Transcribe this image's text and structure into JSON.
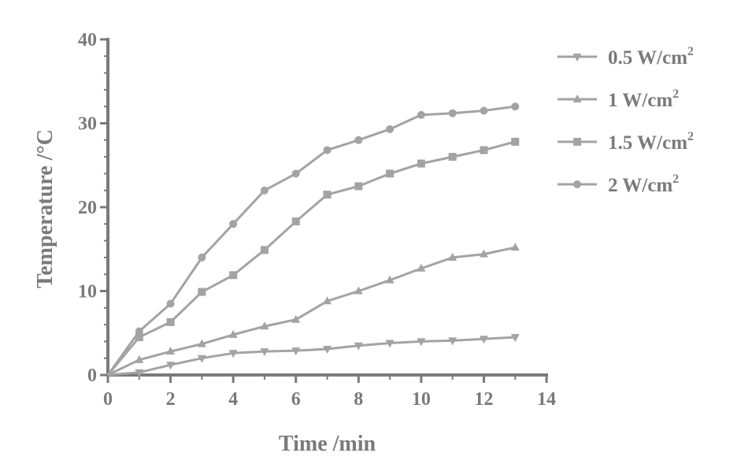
{
  "chart_data": {
    "type": "line",
    "xlabel": "Time /min",
    "ylabel": "Temperature /°C",
    "xlim": [
      0,
      14
    ],
    "ylim": [
      0,
      40
    ],
    "xticks": [
      0,
      2,
      4,
      6,
      8,
      10,
      12,
      14
    ],
    "yticks": [
      0,
      10,
      20,
      30,
      40
    ],
    "grid": false,
    "legend_position": "right",
    "x": [
      0,
      1,
      2,
      3,
      4,
      5,
      6,
      7,
      8,
      9,
      10,
      11,
      12,
      13
    ],
    "series": [
      {
        "name_main": "0.5 W/cm",
        "name_sup": "2",
        "name": "0.5 W/cm2",
        "marker": "triangle-down",
        "values": [
          0,
          0.3,
          1.2,
          2.0,
          2.6,
          2.8,
          2.9,
          3.1,
          3.5,
          3.8,
          4.0,
          4.1,
          4.3,
          4.5
        ]
      },
      {
        "name_main": "1 W/cm",
        "name_sup": "2",
        "name": "1 W/cm2",
        "marker": "triangle-up",
        "values": [
          0,
          1.8,
          2.8,
          3.7,
          4.8,
          5.8,
          6.6,
          8.8,
          10.0,
          11.3,
          12.7,
          14.0,
          14.4,
          15.2
        ]
      },
      {
        "name_main": "1.5 W/cm",
        "name_sup": "2",
        "name": "1.5 W/cm2",
        "marker": "square",
        "values": [
          0,
          4.5,
          6.3,
          9.9,
          11.9,
          14.9,
          18.3,
          21.5,
          22.5,
          24.0,
          25.2,
          26.0,
          26.8,
          27.8
        ]
      },
      {
        "name_main": "2 W/cm",
        "name_sup": "2",
        "name": "2 W/cm2",
        "marker": "circle",
        "values": [
          0,
          5.2,
          8.5,
          14.0,
          18.0,
          22.0,
          24.0,
          26.8,
          28.0,
          29.3,
          31.0,
          31.2,
          31.5,
          32.0
        ]
      }
    ],
    "colors": {
      "line": "#a3a3a3",
      "axis": "#7a7a7a",
      "text": "#7a7a7a"
    }
  }
}
